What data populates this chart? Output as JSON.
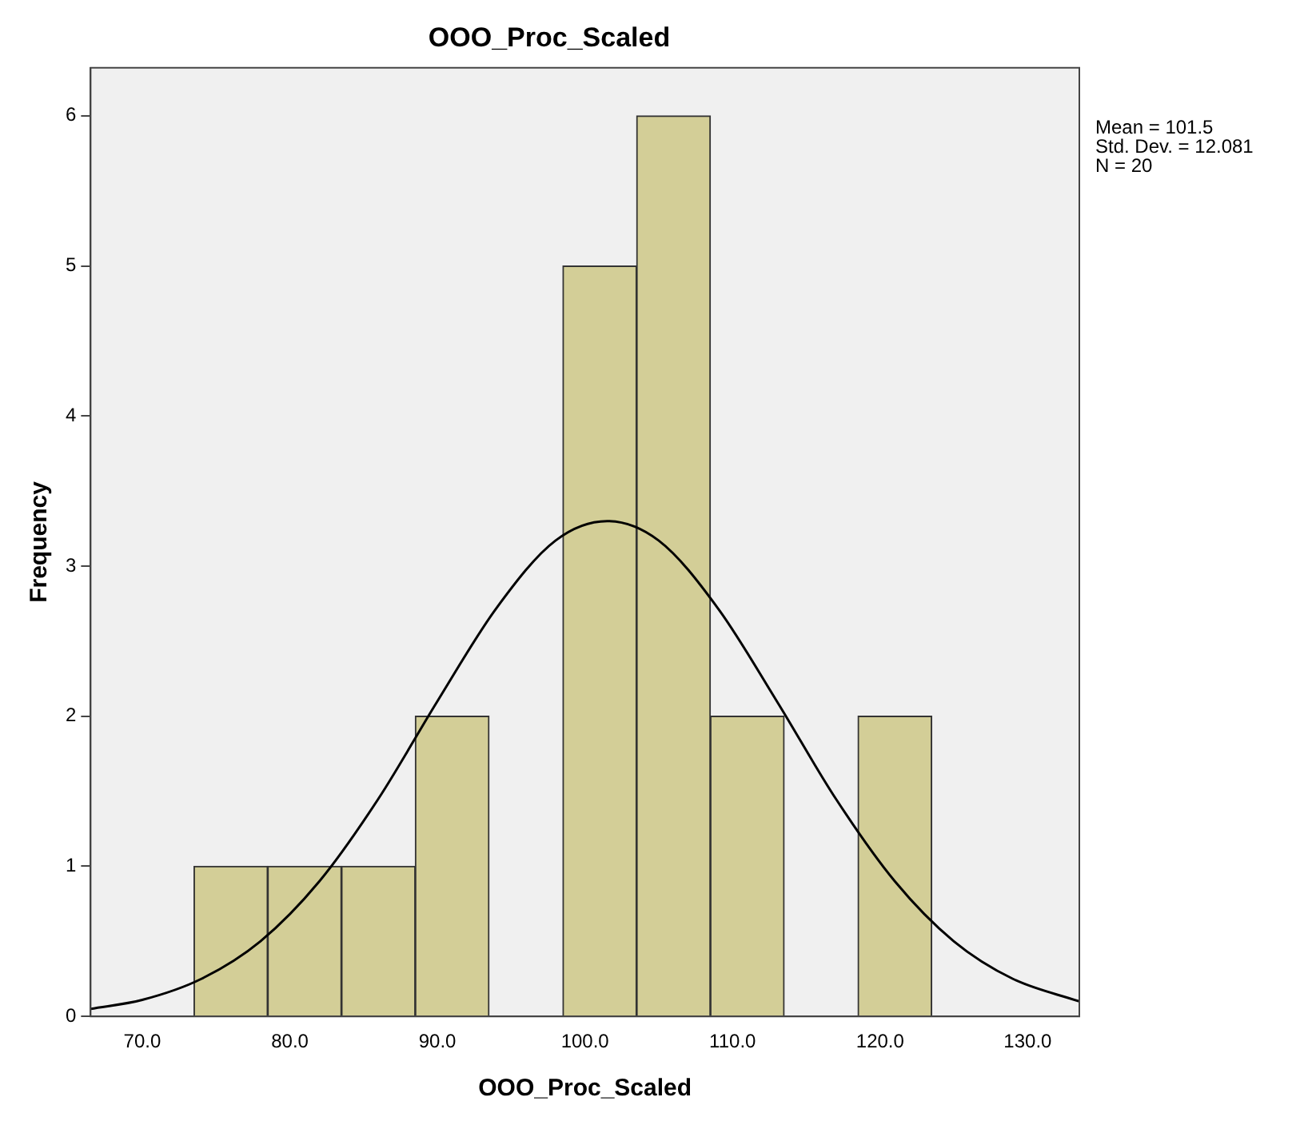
{
  "chart_data": {
    "type": "histogram",
    "title": "OOO_Proc_Scaled",
    "xlabel": "OOO_Proc_Scaled",
    "ylabel": "Frequency",
    "bins": [
      73.5,
      78.5,
      83.5,
      88.5,
      93.5,
      98.5,
      103.5,
      108.5,
      113.5,
      118.5,
      123.5
    ],
    "values": [
      1,
      1,
      1,
      2,
      0,
      5,
      6,
      2,
      0,
      2
    ],
    "color": "#d3ce97",
    "series": [
      {
        "type": "line",
        "color": "#000000",
        "x": [
          66.5,
          70,
          74,
          78,
          82,
          86,
          90,
          94,
          98,
          101.5,
          105,
          109,
          113,
          117,
          121,
          125,
          129,
          133.5
        ],
        "values": [
          0.05,
          0.11,
          0.25,
          0.5,
          0.9,
          1.45,
          2.1,
          2.72,
          3.17,
          3.3,
          3.17,
          2.72,
          2.1,
          1.45,
          0.9,
          0.5,
          0.25,
          0.1
        ]
      }
    ],
    "xlim": [
      66.5,
      133.5
    ],
    "xticks": [
      {
        "value": 70,
        "label": "70.0"
      },
      {
        "value": 80,
        "label": "80.0"
      },
      {
        "value": 90,
        "label": "90.0"
      },
      {
        "value": 100,
        "label": "100.0"
      },
      {
        "value": 110,
        "label": "110.0"
      },
      {
        "value": 120,
        "label": "120.0"
      },
      {
        "value": 130,
        "label": "130.0"
      }
    ],
    "ylim": [
      0,
      6.32
    ],
    "yticks": [
      0,
      1,
      2,
      3,
      4,
      5,
      6
    ],
    "annotations": [
      "Mean = 101.5",
      "Std. Dev. = 12.081",
      "N = 20"
    ],
    "grid": false,
    "legend": false
  }
}
